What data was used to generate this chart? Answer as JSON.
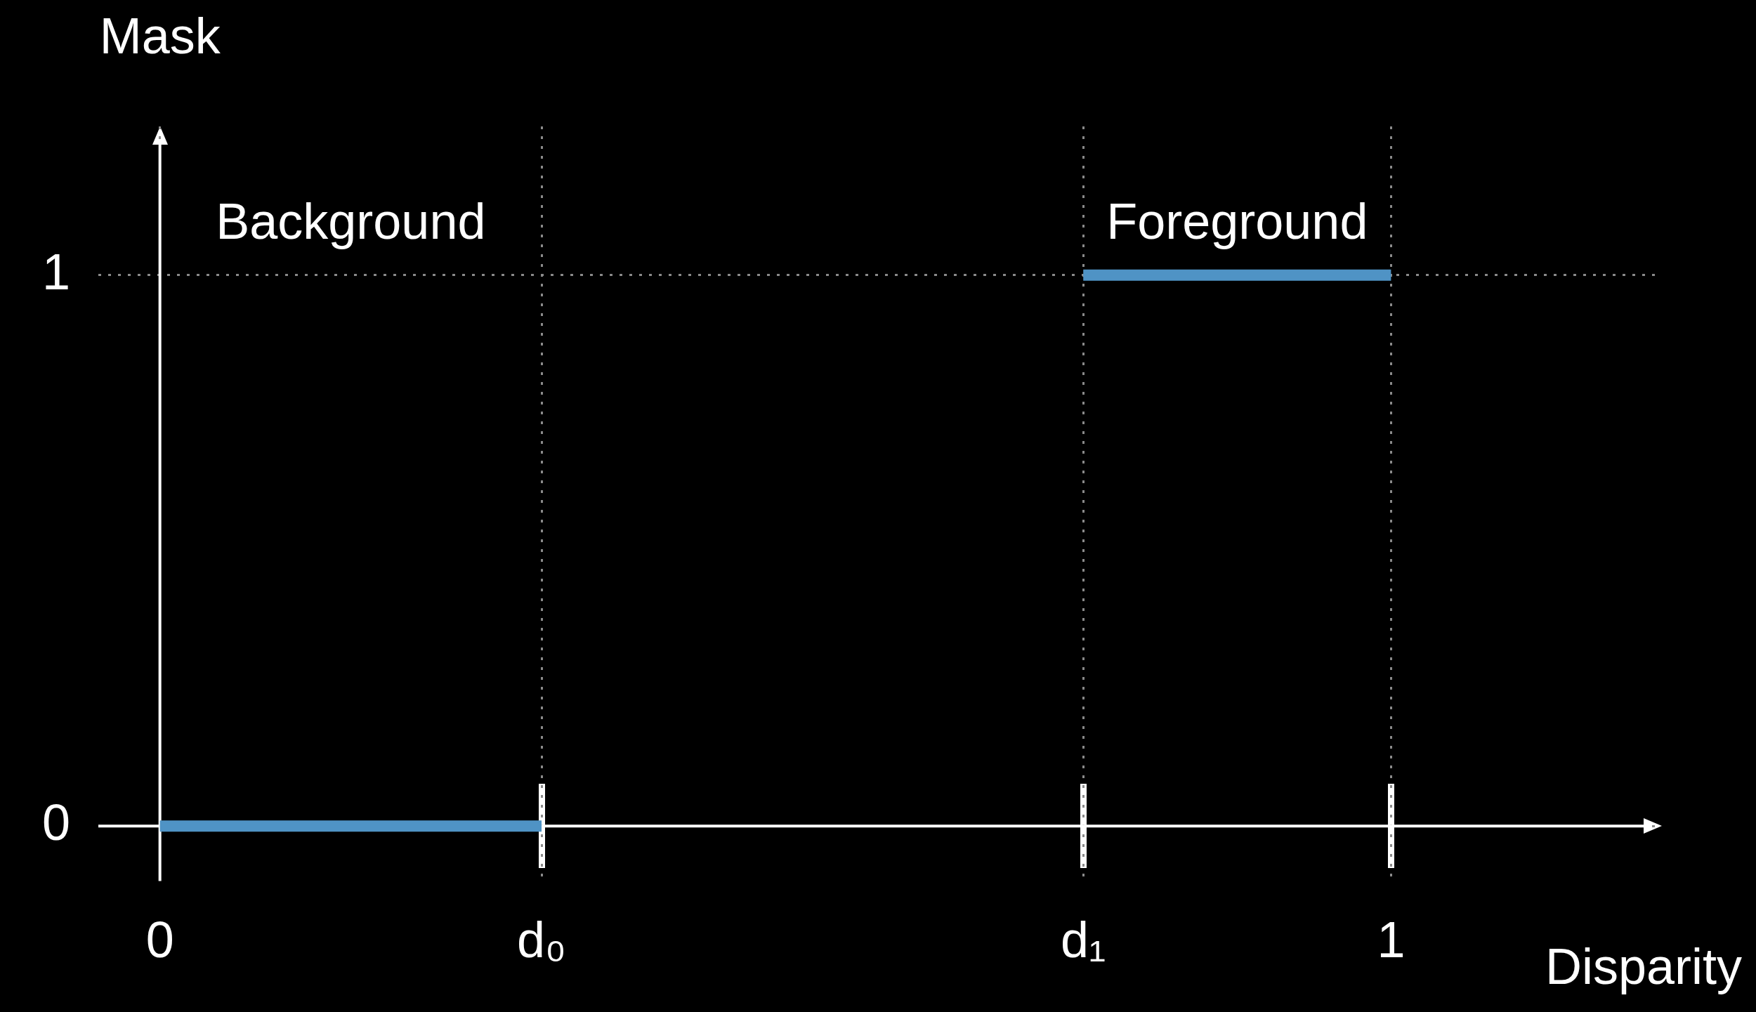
{
  "chart_data": {
    "type": "line",
    "xlabel": "Disparity",
    "ylabel": "Mask",
    "xlim": [
      -0.05,
      1.22
    ],
    "ylim": [
      -0.1,
      1.27
    ],
    "xticks": [
      0,
      {
        "value": 0.31,
        "label": "d₀"
      },
      {
        "value": 0.75,
        "label": "d₁"
      },
      1
    ],
    "yticks": [
      0,
      1
    ],
    "grid": true,
    "marker": "none",
    "line_style": "solid",
    "series": [
      {
        "color": "#4f93c5",
        "x": [
          0,
          0.31
        ],
        "values": [
          0,
          0
        ]
      },
      {
        "color": "#4f93c5",
        "x": [
          0.75,
          1
        ],
        "values": [
          1,
          1
        ]
      }
    ],
    "annotations": [
      "Background",
      "Foreground"
    ]
  }
}
